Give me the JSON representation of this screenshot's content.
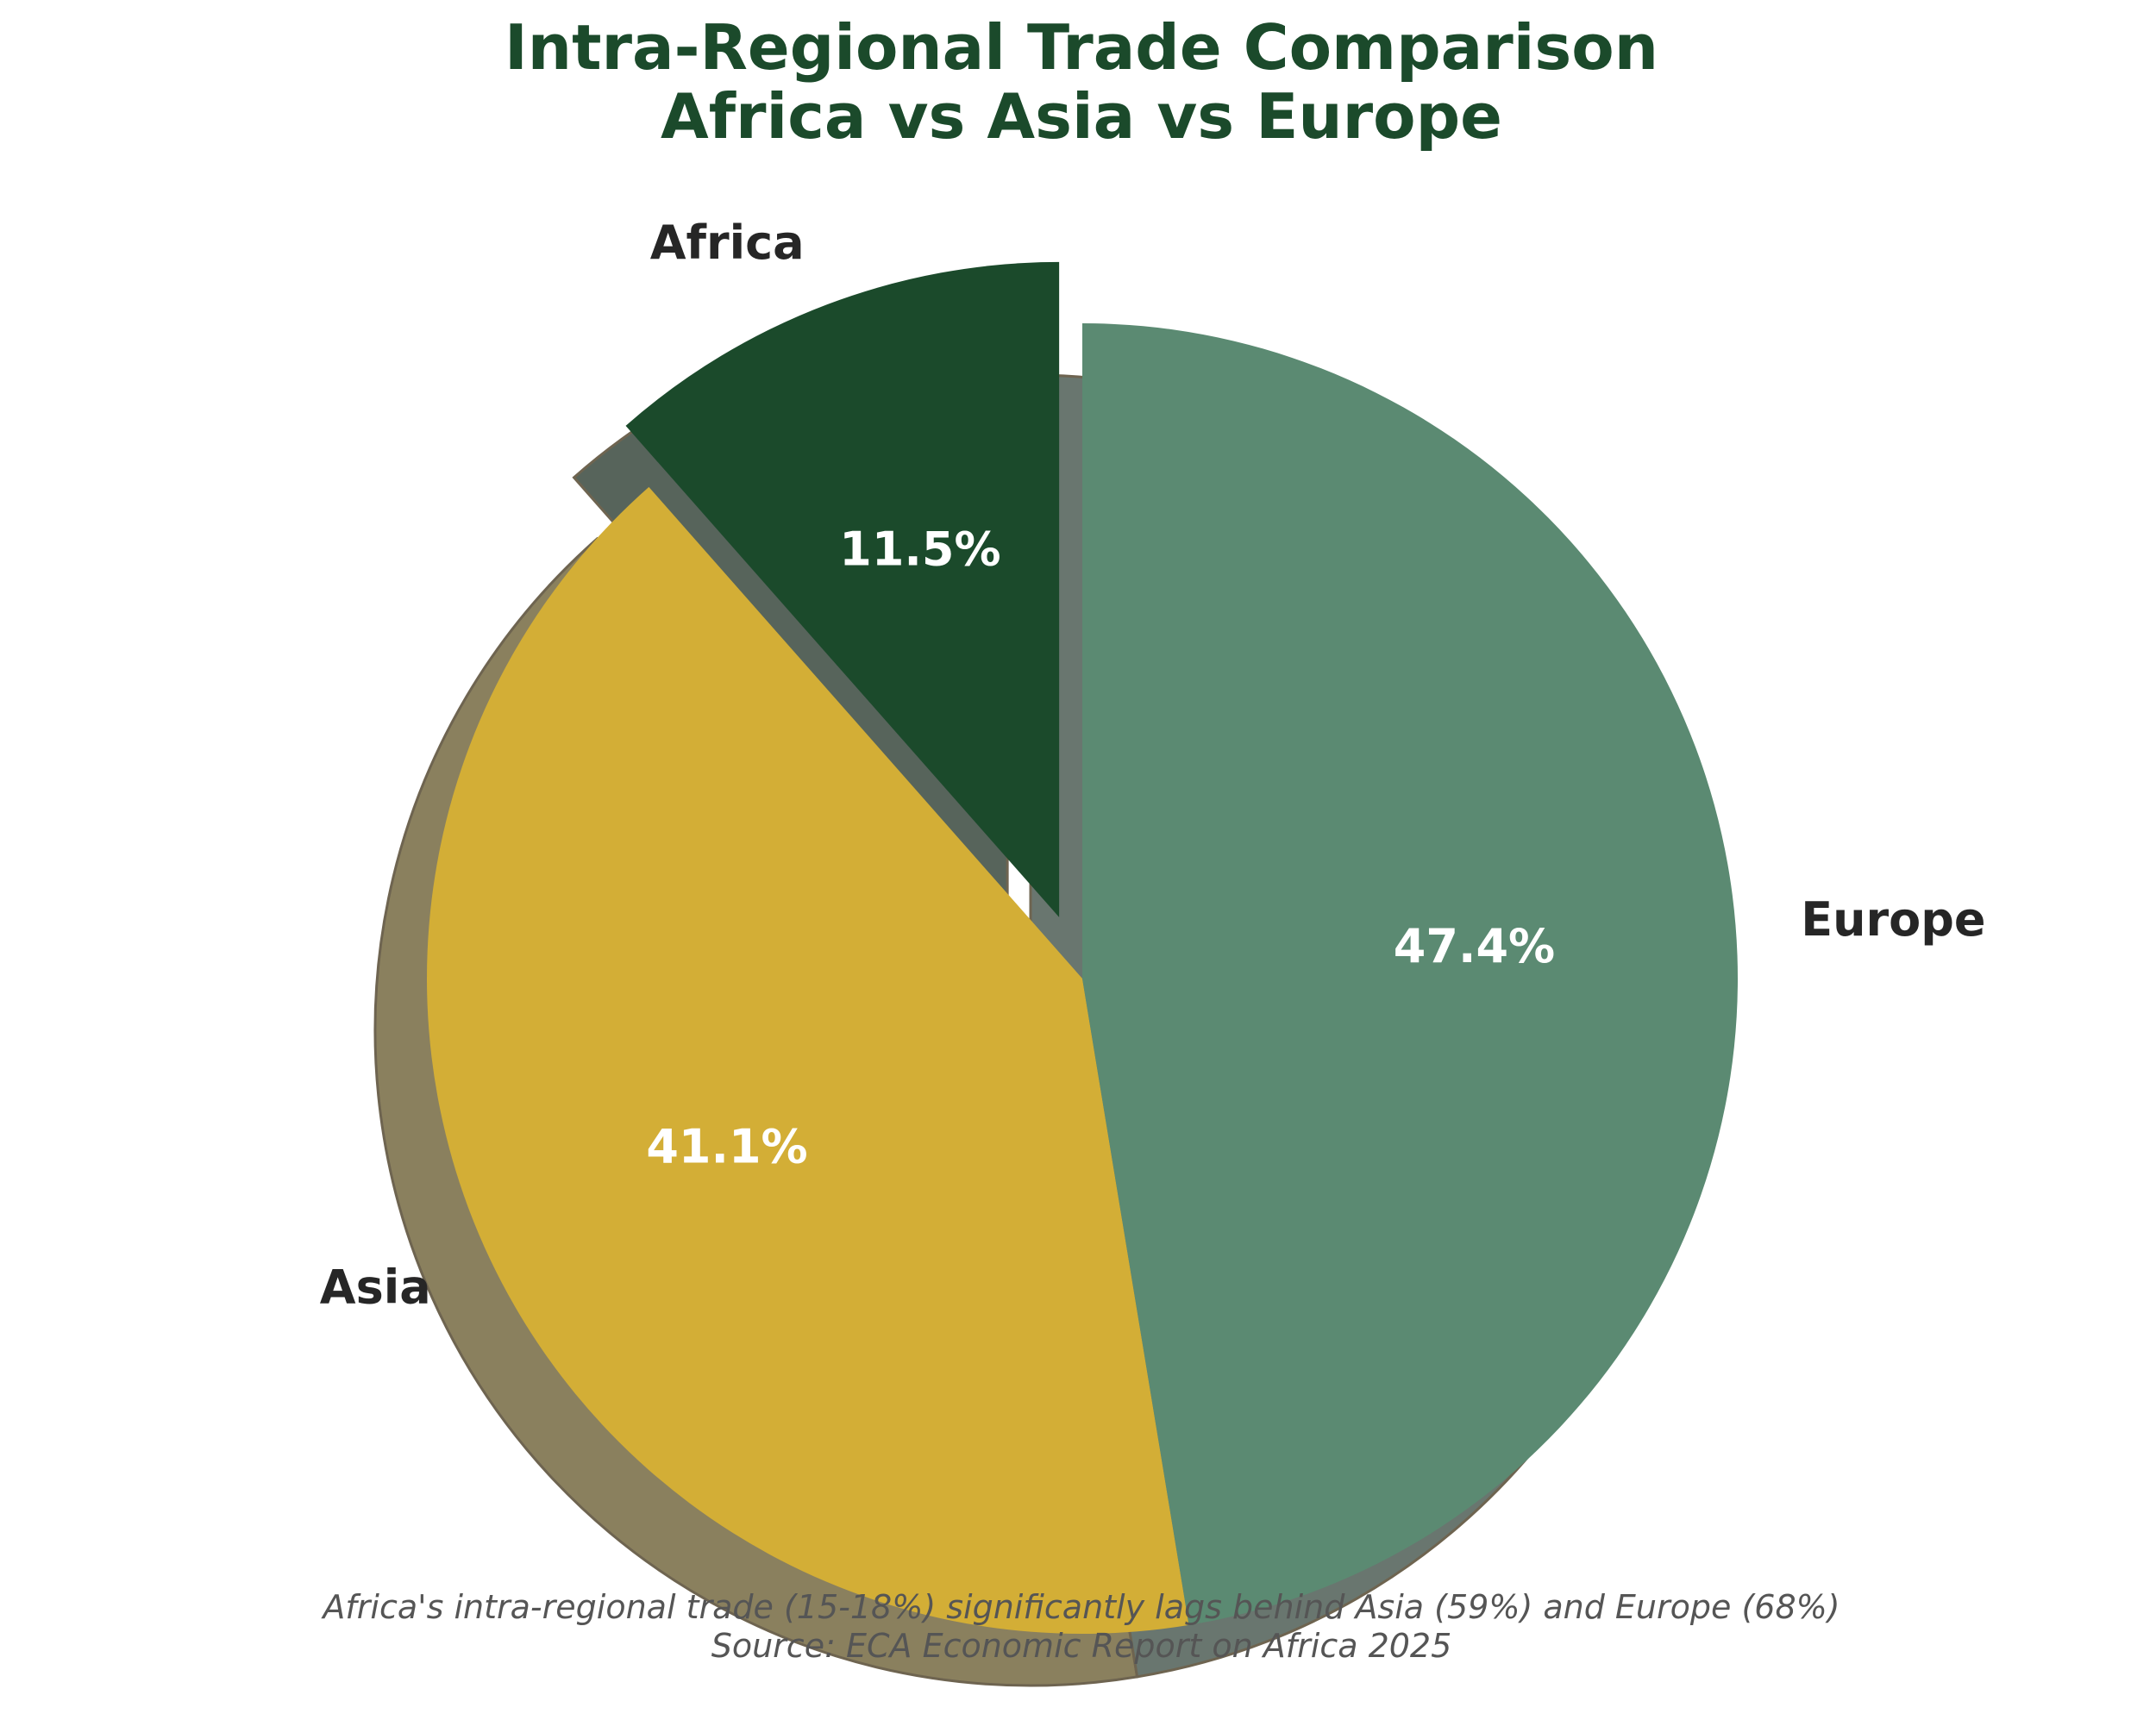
{
  "chart_data": {
    "type": "pie",
    "title_lines": [
      "Intra-Regional Trade Comparison",
      "Africa vs Asia vs Europe"
    ],
    "categories": [
      "Africa",
      "Asia",
      "Europe"
    ],
    "values": [
      11.5,
      41.1,
      47.4
    ],
    "value_labels": [
      "11.5%",
      "41.1%",
      "47.4%"
    ],
    "colors": [
      "#1b4a2b",
      "#d3ae36",
      "#5b8a72"
    ],
    "explode": [
      true,
      false,
      false
    ],
    "shadow": true,
    "start_angle_deg": 90,
    "direction": "counterclockwise",
    "footnote_lines": [
      "Africa's intra-regional trade (15-18%) significantly lags behind Asia (59%) and Europe (68%)",
      "Source: ECA Economic Report on Africa 2025"
    ]
  },
  "style": {
    "title_color": "#1b4a2b",
    "label_color": "#262626",
    "pct_color": "#ffffff",
    "footnote_color": "#555555"
  }
}
